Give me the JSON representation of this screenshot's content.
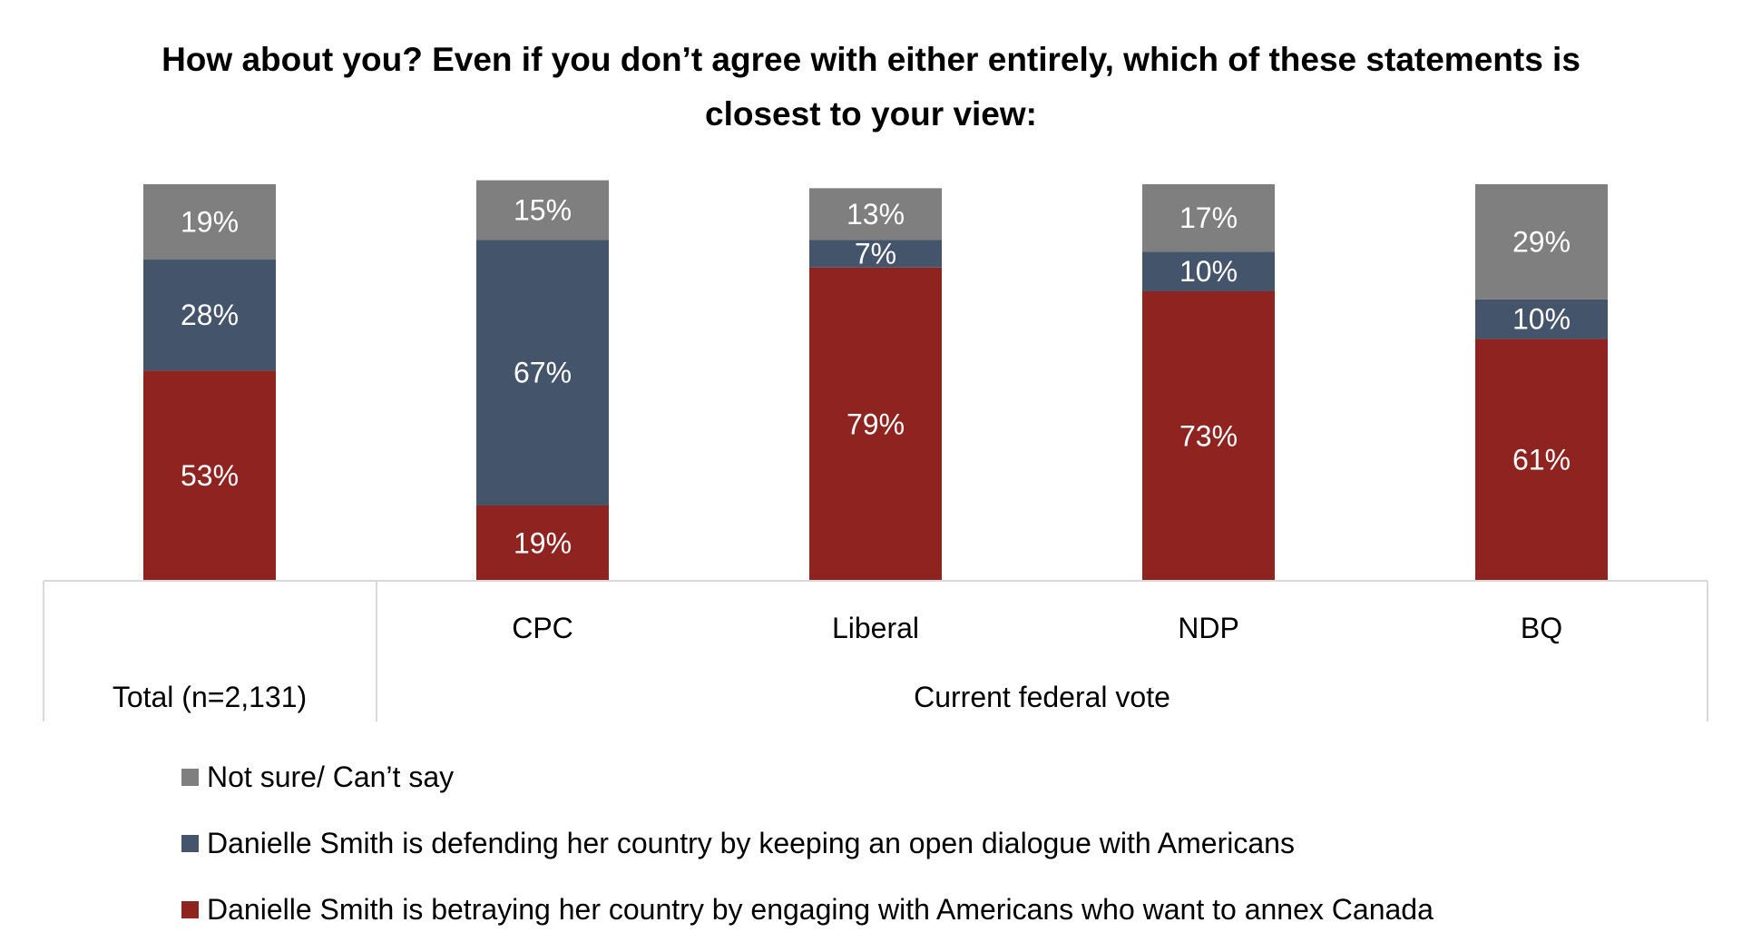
{
  "chart_data": {
    "type": "bar",
    "stacked": true,
    "percent": true,
    "title": "How about you? Even if you don’t agree with either entirely, which of these statements is closest to your view:",
    "categories": [
      "Total (n=2,131)",
      "CPC",
      "Liberal",
      "NDP",
      "BQ"
    ],
    "group_label": "Current federal vote",
    "series": [
      {
        "name": "Danielle Smith is betraying her country by engaging with Americans who want to annex Canada",
        "color": "#8e2320",
        "values": [
          53,
          19,
          79,
          73,
          61
        ]
      },
      {
        "name": "Danielle Smith is defending her country by keeping an open dialogue with Americans",
        "color": "#44546a",
        "values": [
          28,
          67,
          7,
          10,
          10
        ]
      },
      {
        "name": "Not sure/ Can’t say",
        "color": "#7f7f7f",
        "values": [
          19,
          15,
          13,
          17,
          29
        ]
      }
    ],
    "legend_order": [
      2,
      1,
      0
    ],
    "data_labels": true,
    "legend_placement": "bottom",
    "ylim": [
      0,
      100
    ],
    "grid": false
  }
}
